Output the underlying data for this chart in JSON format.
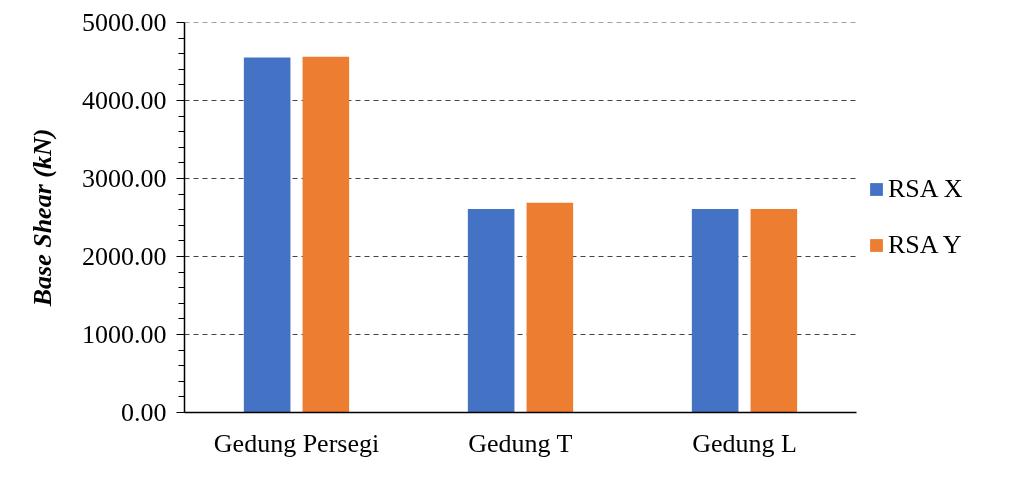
{
  "chart_data": {
    "type": "bar",
    "ylabel": "Base Shear (kN)",
    "categories": [
      "Gedung Persegi",
      "Gedung T",
      "Gedung L"
    ],
    "series": [
      {
        "name": "RSA X",
        "color": "#4472c4",
        "values": [
          4550,
          2610,
          2610
        ]
      },
      {
        "name": "RSA Y",
        "color": "#ed7d31",
        "values": [
          4560,
          2690,
          2610
        ]
      }
    ],
    "ylim": [
      0,
      5000
    ],
    "yticks": [
      {
        "value": 0,
        "label": "0.00"
      },
      {
        "value": 1000,
        "label": "1000.00"
      },
      {
        "value": 2000,
        "label": "2000.00"
      },
      {
        "value": 3000,
        "label": "3000.00"
      },
      {
        "value": 4000,
        "label": "4000.00"
      },
      {
        "value": 5000,
        "label": "5000.00"
      }
    ],
    "grid": "y",
    "legend": "right"
  }
}
